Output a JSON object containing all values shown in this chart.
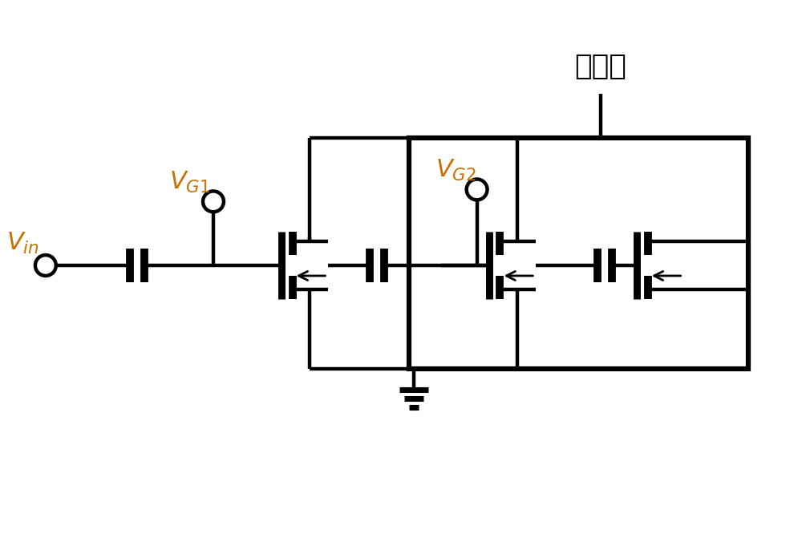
{
  "background_color": "#ffffff",
  "line_color": "#000000",
  "line_width": 3.2,
  "text_color": "#000000",
  "label_color": "#c87000",
  "fig_width": 10.0,
  "fig_height": 6.66,
  "label_vg1": "$V_{G1}$",
  "label_vg2": "$V_{G2}$",
  "label_vin": "$V_{in}$",
  "label_switch": "开关级",
  "switch_label_fontsize": 26,
  "signal_label_fontsize": 22
}
